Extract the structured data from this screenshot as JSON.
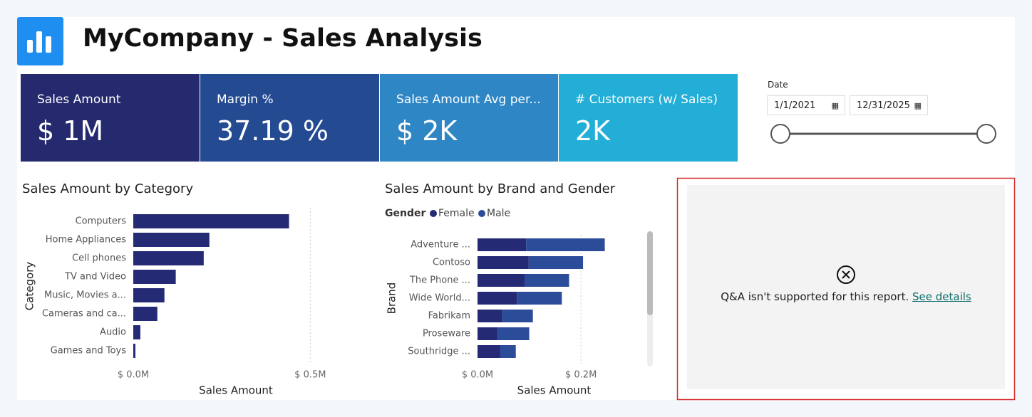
{
  "header": {
    "title": "MyCompany - Sales Analysis"
  },
  "kpis": [
    {
      "label": "Sales Amount",
      "value": "$ 1M",
      "color": "#252a6e"
    },
    {
      "label": "Margin %",
      "value": "37.19 %",
      "color": "#244a92"
    },
    {
      "label": "Sales Amount Avg per...",
      "value": "$ 2K",
      "color": "#2f86c5"
    },
    {
      "label": "# Customers (w/ Sales)",
      "value": "2K",
      "color": "#22aed6"
    }
  ],
  "slicer": {
    "title": "Date",
    "start": "1/1/2021",
    "end": "12/31/2025"
  },
  "chart_data": [
    {
      "type": "bar",
      "title": "Sales Amount by Category",
      "x_label": "Sales Amount",
      "y_label": "Category",
      "color": "#252a74",
      "categories": [
        "Computers",
        "Home Appliances",
        "Cell phones",
        "TV and Video",
        "Music, Movies a...",
        "Cameras and ca...",
        "Audio",
        "Games and Toys"
      ],
      "values": [
        440000,
        215000,
        199000,
        120000,
        88000,
        68000,
        20000,
        6000
      ],
      "xlim": [
        0,
        600000
      ],
      "xticks": [
        {
          "value": 0,
          "label": "$ 0.0M"
        },
        {
          "value": 500000,
          "label": "$ 0.5M"
        }
      ],
      "grid": true
    },
    {
      "type": "bar",
      "stacked": true,
      "title": "Sales Amount by Brand and Gender",
      "legend_title": "Gender",
      "x_label": "Sales Amount",
      "y_label": "Brand",
      "categories": [
        "Adventure ...",
        "Contoso",
        "The Phone ...",
        "Wide World...",
        "Fabrikam",
        "Proseware",
        "Southridge ..."
      ],
      "series": [
        {
          "name": "Female",
          "color": "#252a74",
          "values": [
            94000,
            99000,
            91000,
            76000,
            48000,
            39000,
            44000
          ]
        },
        {
          "name": "Male",
          "color": "#2b4c98",
          "values": [
            152000,
            105000,
            86000,
            87000,
            59000,
            61000,
            30000
          ]
        }
      ],
      "xlim": [
        0,
        310000
      ],
      "xticks": [
        {
          "value": 0,
          "label": "$ 0.0M"
        },
        {
          "value": 200000,
          "label": "$ 0.2M"
        }
      ],
      "grid": true
    }
  ],
  "qa": {
    "message": "Q&A isn't supported for this report.",
    "link": "See details"
  }
}
